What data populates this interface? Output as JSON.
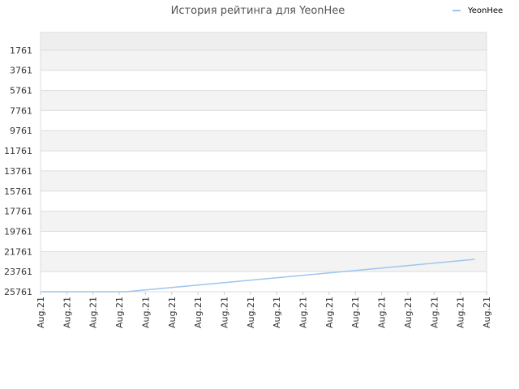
{
  "chart_data": {
    "type": "line",
    "title": "История рейтинга для YeonHee",
    "x": [
      0,
      1,
      2,
      3,
      3.25,
      4,
      5,
      6,
      7,
      8,
      9,
      10,
      11,
      12,
      13,
      14,
      15,
      16,
      16.55
    ],
    "series": [
      {
        "name": "YeonHee",
        "color": "#9ec5ee",
        "values": [
          25761,
          25761,
          25761,
          25761,
          25761,
          25580,
          25338,
          25096,
          24854,
          24612,
          24370,
          24128,
          23886,
          23644,
          23402,
          23160,
          22918,
          22676,
          22541
        ]
      }
    ],
    "xlim": [
      0,
      17
    ],
    "xticks": [
      {
        "value": 0,
        "label": "Aug.21"
      },
      {
        "value": 1,
        "label": "Aug.21"
      },
      {
        "value": 2,
        "label": "Aug.21"
      },
      {
        "value": 3,
        "label": "Aug.21"
      },
      {
        "value": 4,
        "label": "Aug.21"
      },
      {
        "value": 5,
        "label": "Aug.21"
      },
      {
        "value": 6,
        "label": "Aug.21"
      },
      {
        "value": 7,
        "label": "Aug.21"
      },
      {
        "value": 8,
        "label": "Aug.21"
      },
      {
        "value": 9,
        "label": "Aug.21"
      },
      {
        "value": 10,
        "label": "Aug.21"
      },
      {
        "value": 11,
        "label": "Aug.21"
      },
      {
        "value": 12,
        "label": "Aug.21"
      },
      {
        "value": 13,
        "label": "Aug.21"
      },
      {
        "value": 14,
        "label": "Aug.21"
      },
      {
        "value": 15,
        "label": "Aug.21"
      },
      {
        "value": 16,
        "label": "Aug.21"
      },
      {
        "value": 17,
        "label": "Aug.21"
      }
    ],
    "ylim": [
      25761,
      0
    ],
    "yticks": [
      1761,
      3761,
      5761,
      7761,
      9761,
      11761,
      13761,
      15761,
      17761,
      19761,
      21761,
      23761,
      25761
    ],
    "grid": true,
    "legend": "top-right"
  }
}
